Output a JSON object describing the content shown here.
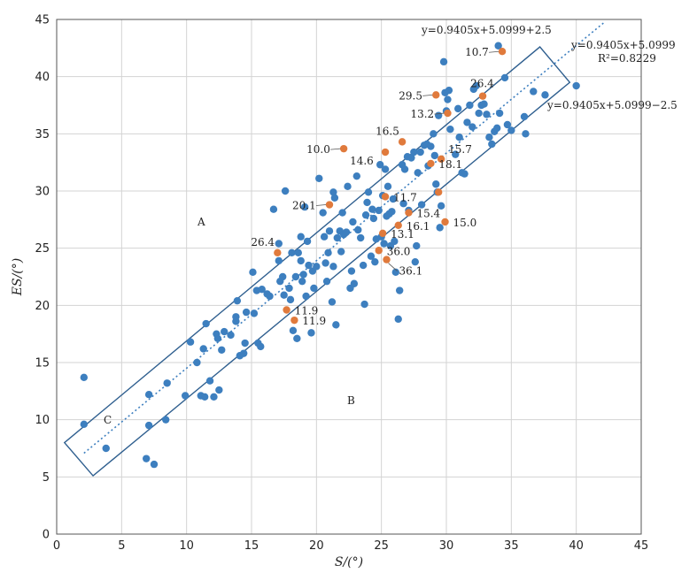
{
  "chart_data": {
    "type": "scatter",
    "xlabel": "S/(°)",
    "ylabel": "ES/(°)",
    "xlim": [
      0,
      45
    ],
    "ylim": [
      0,
      45
    ],
    "xticks": [
      "0",
      "5",
      "10",
      "15",
      "20",
      "25",
      "30",
      "35",
      "40",
      "45"
    ],
    "yticks": [
      "0",
      "5",
      "10",
      "15",
      "20",
      "25",
      "30",
      "35",
      "40",
      "45"
    ],
    "grid": true,
    "colors": {
      "normal": "#3d7fbf",
      "outlier": "#e07a3c",
      "box": "#2f5f8f",
      "fit": "#3d7fbf"
    },
    "fit": {
      "slope": 0.9405,
      "intercept": 5.0999,
      "band": 2.5,
      "x_range": [
        2.1,
        37.9
      ]
    },
    "equations": {
      "upper": "y=0.9405x+5.0999+2.5",
      "center": "y=0.9405x+5.0999",
      "r2": "R²=0.8229",
      "lower": "y=0.9405x+5.0999−2.5"
    },
    "regions": [
      "A",
      "B",
      "C"
    ],
    "series_normal": [
      [
        2.1,
        13.7
      ],
      [
        2.1,
        9.6
      ],
      [
        3.8,
        7.5
      ],
      [
        6.9,
        6.6
      ],
      [
        7.5,
        6.1
      ],
      [
        7.1,
        9.5
      ],
      [
        7.1,
        12.2
      ],
      [
        8.5,
        13.2
      ],
      [
        8.4,
        10.0
      ],
      [
        9.9,
        12.1
      ],
      [
        10.3,
        16.8
      ],
      [
        10.8,
        15.0
      ],
      [
        11.1,
        12.1
      ],
      [
        11.4,
        12.0
      ],
      [
        11.3,
        16.2
      ],
      [
        11.5,
        18.4
      ],
      [
        11.8,
        13.4
      ],
      [
        12.1,
        12.0
      ],
      [
        12.3,
        17.5
      ],
      [
        12.4,
        17.1
      ],
      [
        12.5,
        12.6
      ],
      [
        12.7,
        16.1
      ],
      [
        12.9,
        17.7
      ],
      [
        13.4,
        17.4
      ],
      [
        13.8,
        18.6
      ],
      [
        13.8,
        19.0
      ],
      [
        13.9,
        20.4
      ],
      [
        14.1,
        15.6
      ],
      [
        14.4,
        15.8
      ],
      [
        14.5,
        16.7
      ],
      [
        14.6,
        19.4
      ],
      [
        15.1,
        22.9
      ],
      [
        15.2,
        19.3
      ],
      [
        15.4,
        21.3
      ],
      [
        15.5,
        16.7
      ],
      [
        15.7,
        16.4
      ],
      [
        15.8,
        21.4
      ],
      [
        16.2,
        21.0
      ],
      [
        16.4,
        20.8
      ],
      [
        16.7,
        28.4
      ],
      [
        17.1,
        23.9
      ],
      [
        17.1,
        25.4
      ],
      [
        17.2,
        22.1
      ],
      [
        17.4,
        22.5
      ],
      [
        17.5,
        20.9
      ],
      [
        17.6,
        30.0
      ],
      [
        17.9,
        21.5
      ],
      [
        18.0,
        20.5
      ],
      [
        18.1,
        24.6
      ],
      [
        18.2,
        17.8
      ],
      [
        18.4,
        22.5
      ],
      [
        18.5,
        17.1
      ],
      [
        18.6,
        24.6
      ],
      [
        18.8,
        23.9
      ],
      [
        18.8,
        26.0
      ],
      [
        18.9,
        22.1
      ],
      [
        19.0,
        22.7
      ],
      [
        19.1,
        28.6
      ],
      [
        19.2,
        20.8
      ],
      [
        19.3,
        25.6
      ],
      [
        19.4,
        23.5
      ],
      [
        19.6,
        17.6
      ],
      [
        19.7,
        23.0
      ],
      [
        19.8,
        21.5
      ],
      [
        20.0,
        23.4
      ],
      [
        20.2,
        31.1
      ],
      [
        20.5,
        28.1
      ],
      [
        20.6,
        26.0
      ],
      [
        20.7,
        23.7
      ],
      [
        20.8,
        22.1
      ],
      [
        20.9,
        24.6
      ],
      [
        21.0,
        26.5
      ],
      [
        21.2,
        20.3
      ],
      [
        21.3,
        29.9
      ],
      [
        21.3,
        23.4
      ],
      [
        21.4,
        29.4
      ],
      [
        21.5,
        18.3
      ],
      [
        21.6,
        25.9
      ],
      [
        21.8,
        26.5
      ],
      [
        21.9,
        24.7
      ],
      [
        22.0,
        28.1
      ],
      [
        22.1,
        26.2
      ],
      [
        22.3,
        26.4
      ],
      [
        22.4,
        30.4
      ],
      [
        22.6,
        21.5
      ],
      [
        22.7,
        23.0
      ],
      [
        22.8,
        27.3
      ],
      [
        22.9,
        21.9
      ],
      [
        23.1,
        31.3
      ],
      [
        23.2,
        26.6
      ],
      [
        23.4,
        25.9
      ],
      [
        23.6,
        23.5
      ],
      [
        23.7,
        20.1
      ],
      [
        23.8,
        27.9
      ],
      [
        23.9,
        29.0
      ],
      [
        24.0,
        29.9
      ],
      [
        24.2,
        24.3
      ],
      [
        24.3,
        28.4
      ],
      [
        24.4,
        27.6
      ],
      [
        24.5,
        23.8
      ],
      [
        24.6,
        25.8
      ],
      [
        24.8,
        28.3
      ],
      [
        24.9,
        32.3
      ],
      [
        25.0,
        26.0
      ],
      [
        25.1,
        29.6
      ],
      [
        25.2,
        25.4
      ],
      [
        25.3,
        31.9
      ],
      [
        25.4,
        27.8
      ],
      [
        25.5,
        30.4
      ],
      [
        25.6,
        28.0
      ],
      [
        25.7,
        25.2
      ],
      [
        25.8,
        28.2
      ],
      [
        25.9,
        29.3
      ],
      [
        26.0,
        25.6
      ],
      [
        26.1,
        22.9
      ],
      [
        26.3,
        18.8
      ],
      [
        26.4,
        21.3
      ],
      [
        26.6,
        32.3
      ],
      [
        26.7,
        28.9
      ],
      [
        26.8,
        31.9
      ],
      [
        27.0,
        33.0
      ],
      [
        27.1,
        28.3
      ],
      [
        27.3,
        32.9
      ],
      [
        27.5,
        33.4
      ],
      [
        27.6,
        23.8
      ],
      [
        27.7,
        25.2
      ],
      [
        27.8,
        31.6
      ],
      [
        28.0,
        33.4
      ],
      [
        28.1,
        28.8
      ],
      [
        28.3,
        34.0
      ],
      [
        28.5,
        34.1
      ],
      [
        28.6,
        32.2
      ],
      [
        28.8,
        33.9
      ],
      [
        29.0,
        35.0
      ],
      [
        29.1,
        33.1
      ],
      [
        29.2,
        30.6
      ],
      [
        29.3,
        29.9
      ],
      [
        29.4,
        36.6
      ],
      [
        29.5,
        26.8
      ],
      [
        29.6,
        28.7
      ],
      [
        29.8,
        41.3
      ],
      [
        29.9,
        38.6
      ],
      [
        30.0,
        37.0
      ],
      [
        30.1,
        38.0
      ],
      [
        30.2,
        38.8
      ],
      [
        30.3,
        35.4
      ],
      [
        30.7,
        33.2
      ],
      [
        30.9,
        37.2
      ],
      [
        31.0,
        34.7
      ],
      [
        31.2,
        31.6
      ],
      [
        31.4,
        31.5
      ],
      [
        31.6,
        36.0
      ],
      [
        31.8,
        37.5
      ],
      [
        32.0,
        35.6
      ],
      [
        32.1,
        38.9
      ],
      [
        32.3,
        39.2
      ],
      [
        32.5,
        36.8
      ],
      [
        32.7,
        37.5
      ],
      [
        32.9,
        37.6
      ],
      [
        33.1,
        36.7
      ],
      [
        33.3,
        34.7
      ],
      [
        33.5,
        34.1
      ],
      [
        33.7,
        35.2
      ],
      [
        33.9,
        35.5
      ],
      [
        34.0,
        42.7
      ],
      [
        34.1,
        36.8
      ],
      [
        34.5,
        39.9
      ],
      [
        34.7,
        35.8
      ],
      [
        35.0,
        35.3
      ],
      [
        36.0,
        36.5
      ],
      [
        36.1,
        35.0
      ],
      [
        36.7,
        38.7
      ],
      [
        37.6,
        38.4
      ],
      [
        40.0,
        39.2
      ]
    ],
    "series_outliers": [
      [
        22.1,
        33.7
      ],
      [
        25.3,
        33.4
      ],
      [
        26.6,
        34.3
      ],
      [
        29.2,
        38.4
      ],
      [
        30.1,
        36.8
      ],
      [
        34.3,
        42.2
      ],
      [
        32.8,
        38.3
      ],
      [
        29.6,
        32.8
      ],
      [
        28.8,
        32.4
      ],
      [
        21.0,
        28.8
      ],
      [
        25.3,
        29.5
      ],
      [
        27.1,
        28.1
      ],
      [
        29.4,
        29.9
      ],
      [
        26.3,
        27.0
      ],
      [
        25.1,
        26.3
      ],
      [
        29.9,
        27.3
      ],
      [
        24.8,
        24.8
      ],
      [
        25.4,
        24.0
      ],
      [
        17.0,
        24.6
      ],
      [
        17.7,
        19.6
      ],
      [
        18.3,
        18.7
      ]
    ],
    "labels": [
      {
        "text": "10.0",
        "x": 22.1,
        "y": 33.7,
        "pos": "left"
      },
      {
        "text": "16.5",
        "x": 26.6,
        "y": 34.3,
        "pos": "upleft"
      },
      {
        "text": "14.6",
        "x": 25.3,
        "y": 33.4,
        "pos": "below-left"
      },
      {
        "text": "29.5",
        "x": 29.2,
        "y": 38.4,
        "pos": "left"
      },
      {
        "text": "13.2",
        "x": 30.1,
        "y": 36.8,
        "pos": "left"
      },
      {
        "text": "10.7",
        "x": 34.3,
        "y": 42.2,
        "pos": "left"
      },
      {
        "text": "26.4",
        "x": 32.8,
        "y": 38.3,
        "pos": "up"
      },
      {
        "text": "15.7",
        "x": 29.6,
        "y": 32.8,
        "pos": "up-right"
      },
      {
        "text": "18.1",
        "x": 28.8,
        "y": 32.4,
        "pos": "right"
      },
      {
        "text": "20.1",
        "x": 21.0,
        "y": 28.8,
        "pos": "left"
      },
      {
        "text": "11.7",
        "x": 25.3,
        "y": 29.5,
        "pos": "right"
      },
      {
        "text": "15.4",
        "x": 27.1,
        "y": 28.1,
        "pos": "right"
      },
      {
        "text": "16.1",
        "x": 26.3,
        "y": 27.0,
        "pos": "right"
      },
      {
        "text": "15.0",
        "x": 29.9,
        "y": 27.3,
        "pos": "right"
      },
      {
        "text": "13.1",
        "x": 25.1,
        "y": 26.3,
        "pos": "right"
      },
      {
        "text": "36.0",
        "x": 24.8,
        "y": 24.8,
        "pos": "right"
      },
      {
        "text": "36.1",
        "x": 25.4,
        "y": 24.0,
        "pos": "below"
      },
      {
        "text": "26.4",
        "x": 17.0,
        "y": 24.6,
        "pos": "upleft"
      },
      {
        "text": "11.9",
        "x": 17.7,
        "y": 19.6,
        "pos": "right"
      },
      {
        "text": "11.9",
        "x": 18.3,
        "y": 18.7,
        "pos": "right"
      }
    ]
  }
}
